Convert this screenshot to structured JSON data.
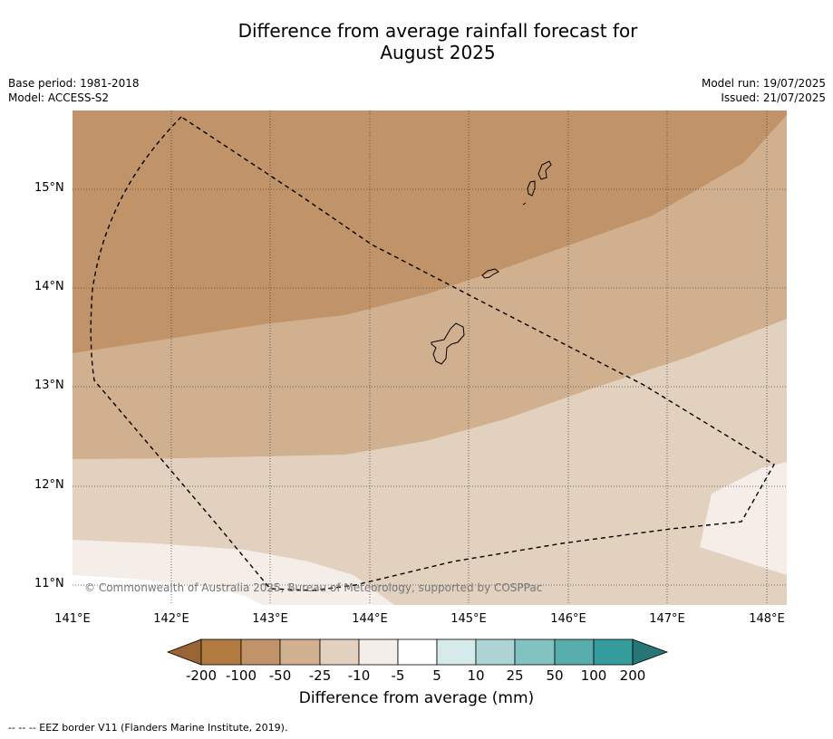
{
  "title_line1": "Difference from average rainfall forecast for",
  "title_line2": "August 2025",
  "base_period": "Base period: 1981-2018",
  "model": "Model: ACCESS-S2",
  "model_run": "Model run: 19/07/2025",
  "issued": "Issued: 21/07/2025",
  "latitudes": [
    "15°N",
    "14°N",
    "13°N",
    "12°N",
    "11°N"
  ],
  "longitudes": [
    "141°E",
    "142°E",
    "143°E",
    "144°E",
    "145°E",
    "146°E",
    "147°E",
    "148°E"
  ],
  "copyright": "© Commonwealth of Australia 2025, Bureau of Meteorology, supported by COSPPac",
  "colorbar": {
    "labels": [
      "-200",
      "-100",
      "-50",
      "-25",
      "-10",
      "-5",
      "5",
      "10",
      "25",
      "50",
      "100",
      "200"
    ],
    "colors": [
      "#9a6535",
      "#b07a41",
      "#c09468",
      "#d1b090",
      "#e3d1c0",
      "#f5ede7",
      "#ffffff",
      "#d5eaea",
      "#acd4d4",
      "#84c1c1",
      "#57acac",
      "#359c9c",
      "#277575"
    ],
    "title": "Difference from average (mm)"
  },
  "footnote": "--  --  -- EEZ border V11 (Flanders Marine Institute, 2019)."
}
